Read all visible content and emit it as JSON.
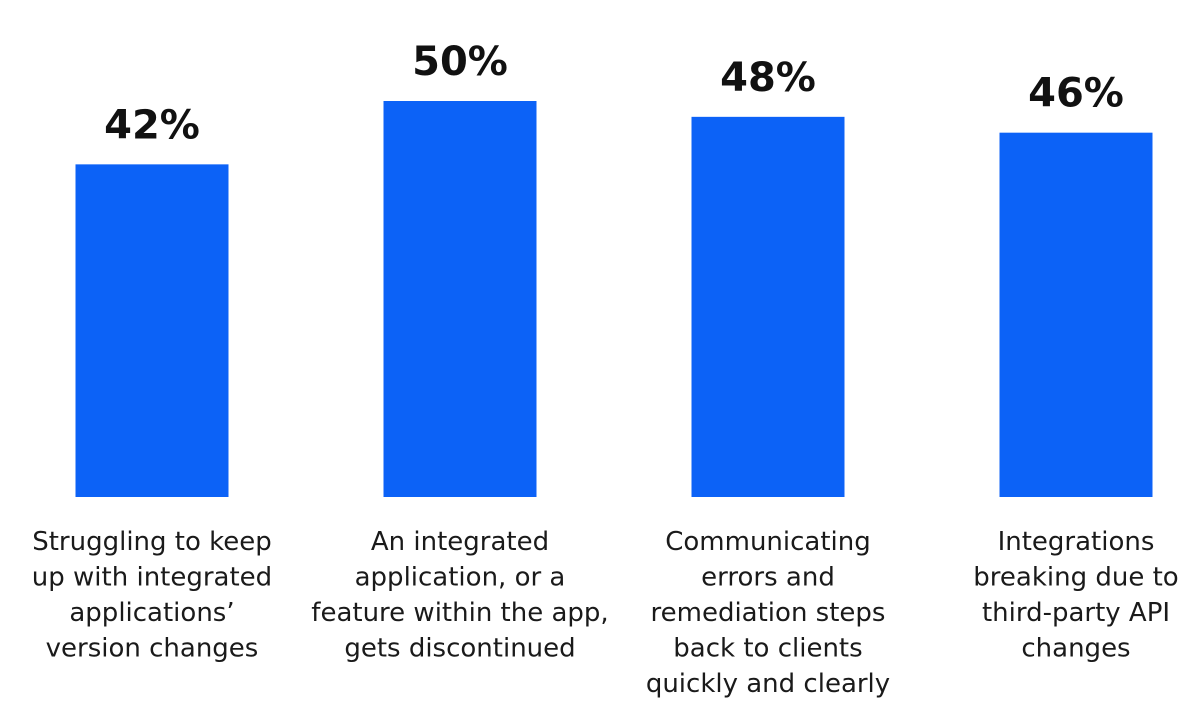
{
  "chart_data": {
    "type": "bar",
    "categories": [
      [
        "Struggling to keep",
        "up with integrated",
        "applications’",
        "version changes"
      ],
      [
        "An integrated",
        "application, or a",
        "feature within the app,",
        "gets discontinued"
      ],
      [
        "Communicating",
        "errors and",
        "remediation steps",
        "back to clients",
        "quickly and clearly"
      ],
      [
        "Integrations",
        "breaking due to",
        "third-party API",
        "changes"
      ]
    ],
    "values": [
      42,
      50,
      48,
      46
    ],
    "value_labels": [
      "42%",
      "50%",
      "48%",
      "46%"
    ],
    "bar_color": "#0c62f7",
    "ylim": [
      0,
      50
    ],
    "grid": false,
    "title": "",
    "xlabel": "",
    "ylabel": ""
  }
}
